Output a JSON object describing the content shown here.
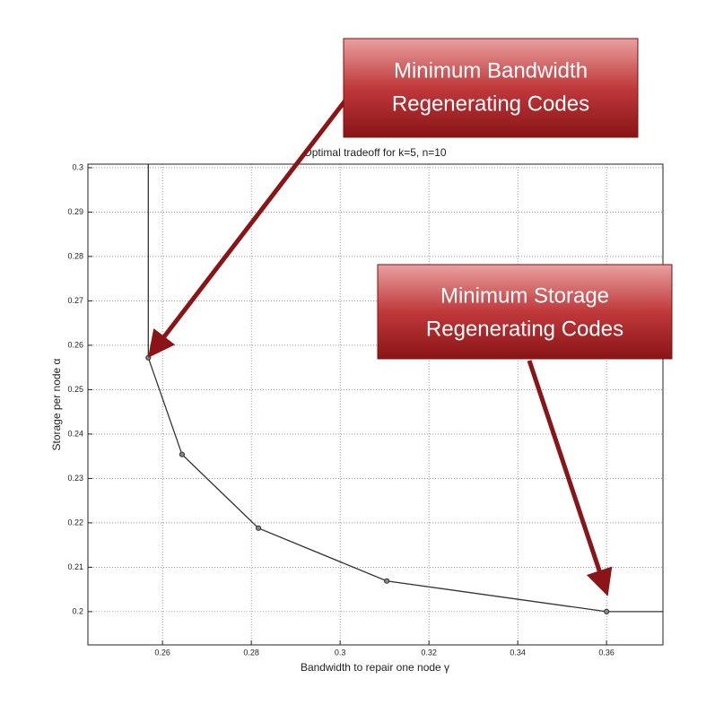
{
  "chart_data": {
    "type": "line",
    "title": "Optimal tradeoff for k=5, n=10",
    "x_label": "Bandwidth to repair one node γ",
    "y_label": "Storage per node α",
    "xlim": [
      0.2432,
      0.3727
    ],
    "ylim": [
      0.1925,
      0.3008
    ],
    "xticks": [
      0.26,
      0.28,
      0.3,
      0.32,
      0.34,
      0.36
    ],
    "yticks": [
      0.2,
      0.21,
      0.22,
      0.23,
      0.24,
      0.25,
      0.26,
      0.27,
      0.28,
      0.29,
      0.3
    ],
    "grid": true,
    "series": [
      {
        "color": "#333333",
        "markers": false,
        "x": [
          0.2568,
          0.2568,
          0.2644,
          0.2816,
          0.3105,
          0.36,
          0.3727
        ],
        "values": [
          0.3008,
          0.2572,
          0.2354,
          0.2188,
          0.2069,
          0.2,
          0.2
        ]
      },
      {
        "color": "#333333",
        "markers": true,
        "x": [
          0.2568,
          0.2644,
          0.2816,
          0.3105,
          0.36
        ],
        "values": [
          0.2572,
          0.2354,
          0.2188,
          0.2069,
          0.2
        ]
      }
    ],
    "annotations": [
      {
        "lines": [
          "Minimum Bandwidth",
          "Regenerating Codes"
        ]
      },
      {
        "lines": [
          "Minimum Storage",
          "Regenerating Codes"
        ]
      }
    ]
  }
}
